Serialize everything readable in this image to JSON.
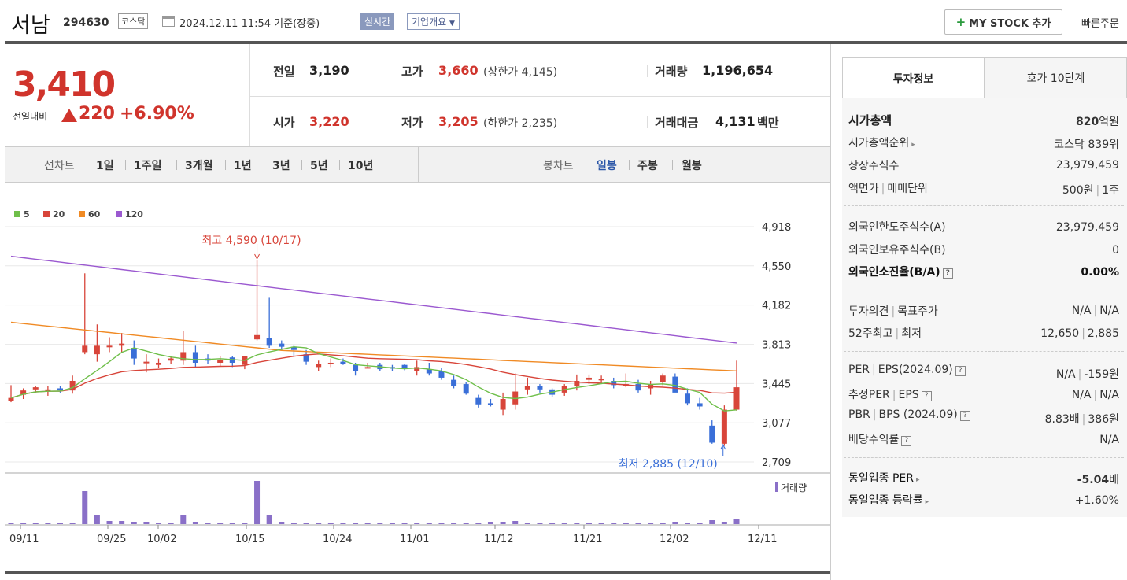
{
  "header": {
    "name": "서남",
    "code": "294630",
    "market": "코스닥",
    "datetime": "2024.12.11 11:54 기준(장중)",
    "realtime": "실시간",
    "company_info": "기업개요",
    "my_stock": "MY STOCK 추가",
    "quick_order": "빠른주문"
  },
  "price": {
    "current": "3,410",
    "prev_label": "전일대비",
    "change": "220",
    "rate": "+6.90%"
  },
  "stats": {
    "prev_close_label": "전일",
    "prev_close": "3,190",
    "high_label": "고가",
    "high": "3,660",
    "upper_limit": "(상한가 4,145)",
    "volume_label": "거래량",
    "volume": "1,196,654",
    "open_label": "시가",
    "open": "3,220",
    "low_label": "저가",
    "low": "3,205",
    "lower_limit": "(하한가 2,235)",
    "amount_label": "거래대금",
    "amount": "4,131",
    "amount_unit": "백만"
  },
  "periods": {
    "line_label": "선차트",
    "line_items": [
      "1일",
      "1주일",
      "3개월",
      "1년",
      "3년",
      "5년",
      "10년"
    ],
    "candle_label": "봉차트",
    "candle_items": [
      "일봉",
      "주봉",
      "월봉"
    ],
    "selected_candle": "일봉"
  },
  "legend": [
    {
      "label": "5",
      "color": "#6fbf4a"
    },
    {
      "label": "20",
      "color": "#d8453a"
    },
    {
      "label": "60",
      "color": "#f08a24"
    },
    {
      "label": "120",
      "color": "#9b59d0"
    }
  ],
  "chart_data": {
    "type": "candlestick",
    "y_ticks": [
      "4,918",
      "4,550",
      "4,182",
      "3,813",
      "3,445",
      "3,077",
      "2,709"
    ],
    "x_ticks": [
      "09/11",
      "09/25",
      "10/02",
      "10/15",
      "10/24",
      "11/01",
      "11/12",
      "11/21",
      "12/02",
      "12/11"
    ],
    "high_annotation": "최고 4,590 (10/17)",
    "low_annotation": "최저 2,885 (12/10)",
    "volume_label": "거래량",
    "colors": {
      "up": "#d8453a",
      "down": "#3a6fd8",
      "volume": "#8a70c8"
    }
  },
  "info_panel": {
    "tab_active": "투자정보",
    "tab_other": "호가 10단계",
    "rows1": [
      {
        "label": "시가총액",
        "value": "820",
        "unit": "억원"
      },
      {
        "label": "시가총액순위",
        "value": "코스닥 839위"
      },
      {
        "label": "상장주식수",
        "value": "23,979,459"
      },
      {
        "label": "액면가",
        "label2": "매매단위",
        "value": "500원",
        "value2": "1주"
      }
    ],
    "rows2": [
      {
        "label": "외국인한도주식수(A)",
        "value": "23,979,459"
      },
      {
        "label": "외국인보유주식수(B)",
        "value": "0"
      },
      {
        "label": "외국인소진율(B/A)",
        "value": "0.00%"
      }
    ],
    "rows3": [
      {
        "label": "투자의견",
        "label2": "목표주가",
        "value": "N/A",
        "value2": "N/A"
      },
      {
        "label": "52주최고",
        "label2": "최저",
        "value": "12,650",
        "value2": "2,885"
      }
    ],
    "rows4": [
      {
        "label": "PER",
        "label2": "EPS(2024.09)",
        "value": "N/A",
        "value2": "-159원"
      },
      {
        "label": "추정PER",
        "label2": "EPS",
        "value": "N/A",
        "value2": "N/A"
      },
      {
        "label": "PBR",
        "label2": "BPS (2024.09)",
        "value": "8.83배",
        "value2": "386원"
      },
      {
        "label": "배당수익률",
        "value": "N/A"
      }
    ],
    "rows5": [
      {
        "label": "동일업종 PER",
        "value": "-5.04",
        "unit": "배"
      },
      {
        "label": "동일업종 등락률",
        "value": "+1.60%"
      }
    ]
  }
}
